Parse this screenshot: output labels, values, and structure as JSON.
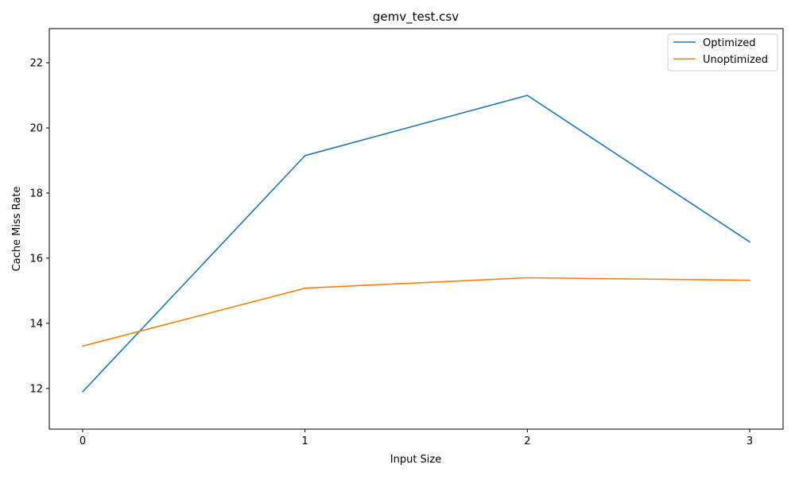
{
  "chart_data": {
    "type": "line",
    "title": "gemv_test.csv",
    "xlabel": "Input Size",
    "ylabel": "Cache Miss Rate",
    "x": [
      0,
      1,
      2,
      3
    ],
    "x_ticks": [
      "0",
      "1",
      "2",
      "3"
    ],
    "y_ticks": [
      "12",
      "14",
      "16",
      "18",
      "20",
      "22"
    ],
    "xlim": [
      -0.15,
      3.15
    ],
    "ylim": [
      10.75,
      23.05
    ],
    "grid": false,
    "legend_position": "top-right",
    "series": [
      {
        "name": "Optimized",
        "values": [
          11.9,
          19.15,
          21.0,
          16.5
        ],
        "color": "#1f77b4"
      },
      {
        "name": "Unoptimized",
        "values": [
          13.3,
          15.08,
          15.4,
          15.32
        ],
        "color": "#ff7f0e"
      }
    ]
  }
}
